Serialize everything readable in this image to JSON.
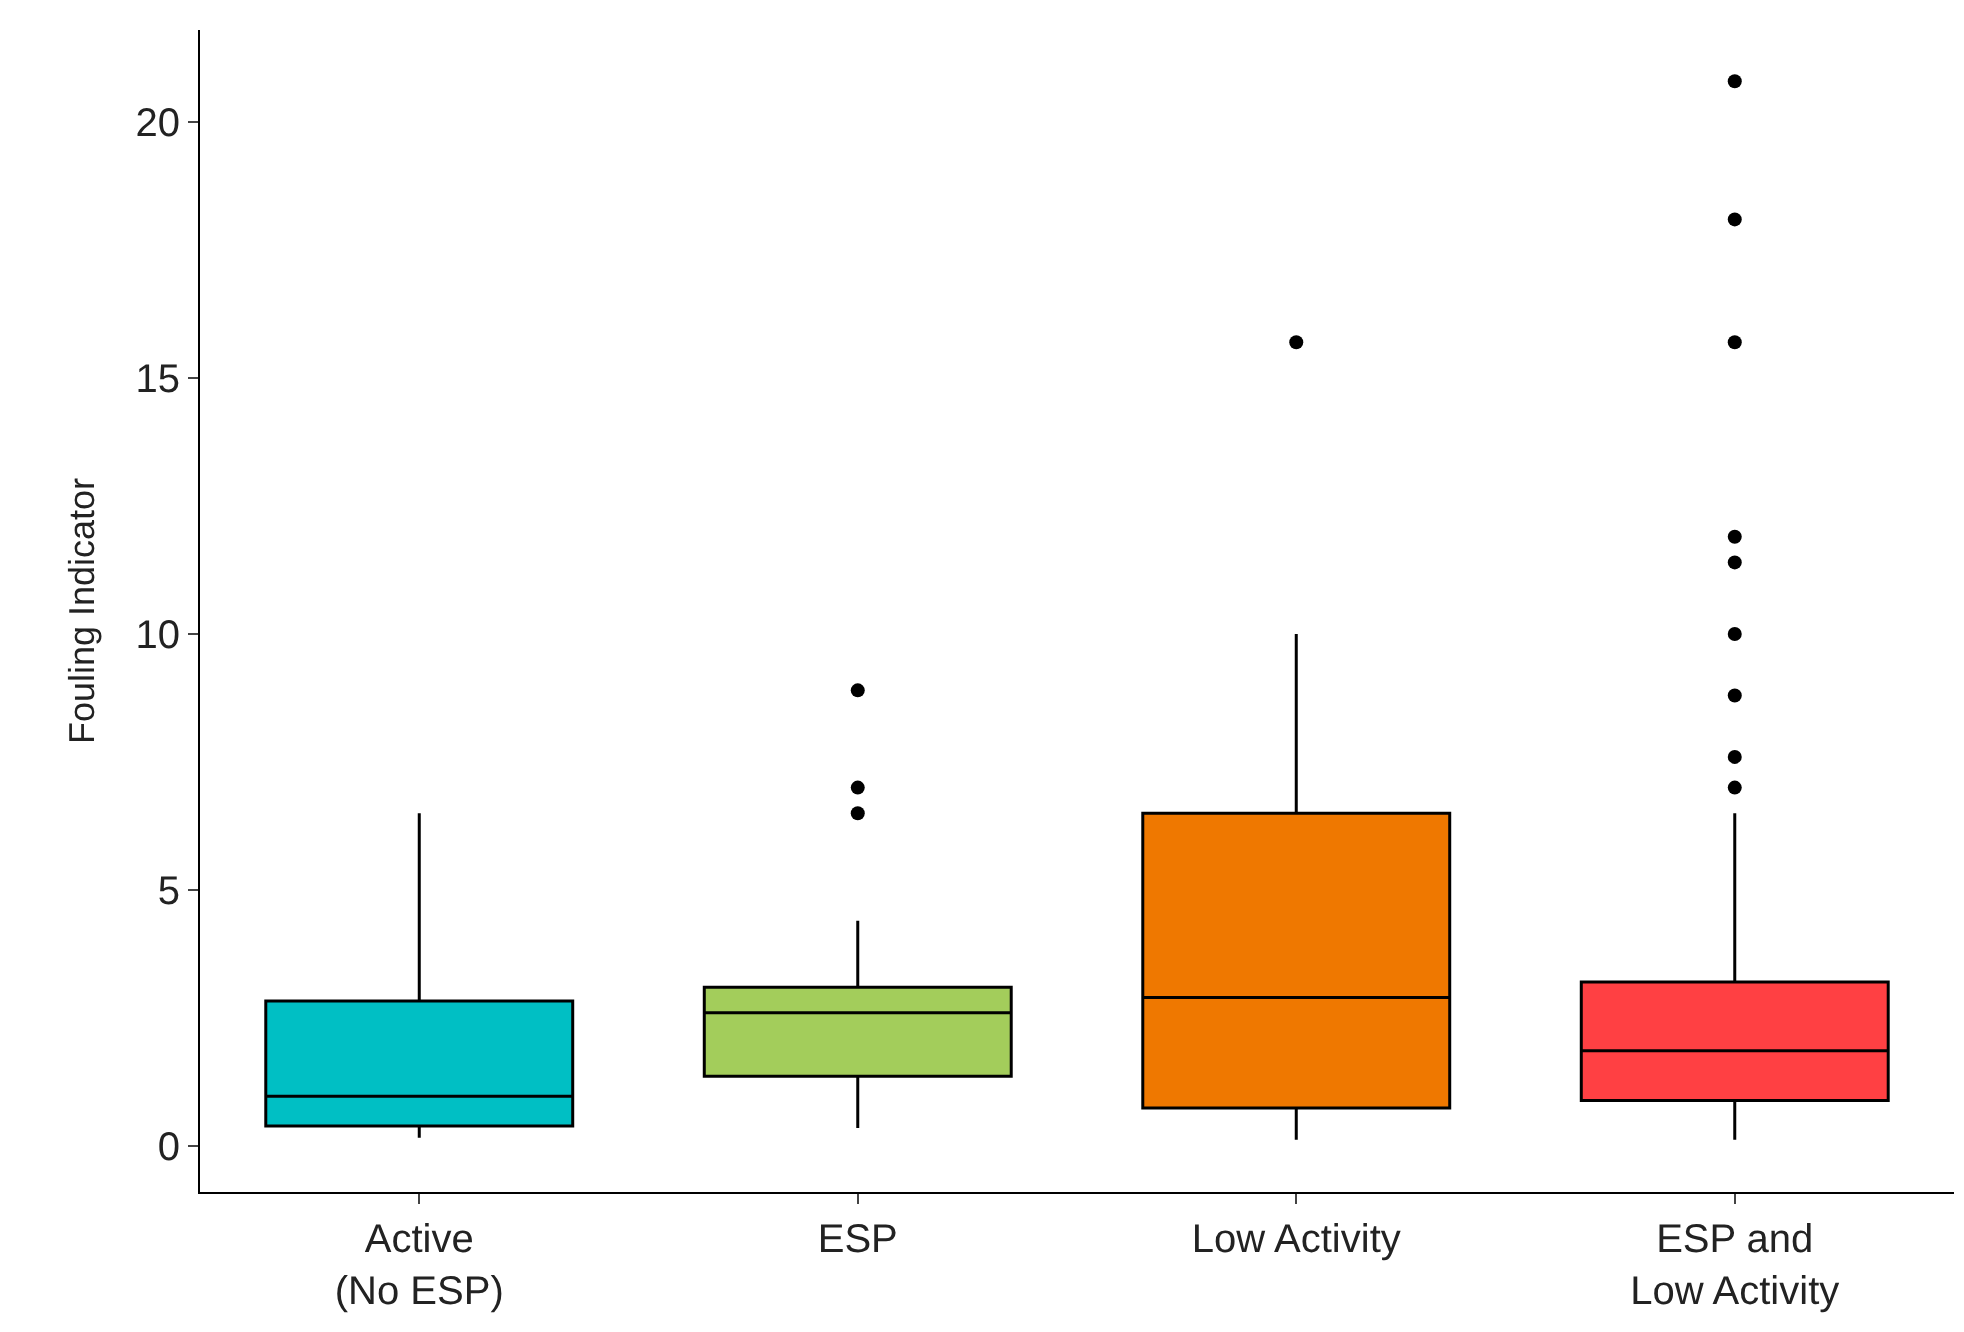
{
  "chart_data": {
    "type": "box",
    "ylabel": "Fouling Indicator",
    "categories": [
      "Active\n(No ESP)",
      "ESP",
      "Low Activity",
      "ESP and\nLow Activity"
    ],
    "colors": [
      "#00bfc4",
      "#a3cd5b",
      "#ef7800",
      "#ff4043"
    ],
    "boxes": [
      {
        "low": 0.16,
        "q1": 0.39,
        "median": 0.97,
        "q3": 2.83,
        "high": 6.5
      },
      {
        "low": 0.35,
        "q1": 1.36,
        "median": 2.6,
        "q3": 3.1,
        "high": 4.4,
        "outliers": [
          6.5,
          7.0,
          8.9
        ]
      },
      {
        "low": 0.12,
        "q1": 0.74,
        "median": 2.9,
        "q3": 6.5,
        "high": 10.0,
        "outliers": [
          15.7
        ]
      },
      {
        "low": 0.12,
        "q1": 0.89,
        "median": 1.86,
        "q3": 3.2,
        "high": 6.5,
        "outliers": [
          7.0,
          7.6,
          8.8,
          10.0,
          11.4,
          11.9,
          15.7,
          18.1,
          20.8
        ]
      }
    ],
    "ylim": [
      -0.9,
      21.8
    ],
    "yticks": [
      0,
      5,
      10,
      15,
      20
    ]
  }
}
